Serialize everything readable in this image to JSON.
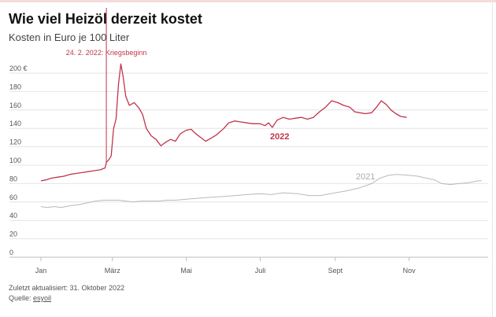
{
  "header": {
    "title": "Wie viel Heizöl derzeit kostet",
    "subtitle": "Kosten in Euro je 100 Liter"
  },
  "footer": {
    "updated": "Zuletzt aktualisiert: 31. Oktober 2022",
    "source_prefix": "Quelle: ",
    "source_link": "esyoil"
  },
  "chart_data": {
    "type": "line",
    "title": "Wie viel Heizöl derzeit kostet",
    "subtitle": "Kosten in Euro je 100 Liter",
    "ylim": [
      0,
      200
    ],
    "yticks": [
      0,
      20,
      40,
      60,
      80,
      100,
      120,
      140,
      160,
      180,
      200
    ],
    "ytick_labels": [
      "0",
      "20",
      "40",
      "60",
      "80",
      "100",
      "120",
      "140",
      "160",
      "180",
      "200 €"
    ],
    "xlim": [
      "01-01",
      "12-31"
    ],
    "xticks": [
      {
        "label": "Jan",
        "date": "01-01"
      },
      {
        "label": "März",
        "date": "03-01"
      },
      {
        "label": "Mai",
        "date": "05-01"
      },
      {
        "label": "Juli",
        "date": "07-01"
      },
      {
        "label": "Sept",
        "date": "09-01"
      },
      {
        "label": "Nov",
        "date": "11-01"
      }
    ],
    "grid": true,
    "annotations": [
      {
        "date": "02-24",
        "text": "24. 2. 2022: Kriegsbeginn"
      }
    ],
    "series": [
      {
        "name": "2021",
        "color": "#b9b9b9",
        "points": [
          [
            "01-01",
            55
          ],
          [
            "01-06",
            54
          ],
          [
            "01-12",
            55
          ],
          [
            "01-18",
            54
          ],
          [
            "01-25",
            56
          ],
          [
            "02-01",
            57
          ],
          [
            "02-08",
            59
          ],
          [
            "02-15",
            61
          ],
          [
            "02-22",
            62
          ],
          [
            "03-01",
            62
          ],
          [
            "03-06",
            62
          ],
          [
            "03-12",
            61
          ],
          [
            "03-18",
            60
          ],
          [
            "03-25",
            61
          ],
          [
            "04-01",
            61
          ],
          [
            "04-08",
            61
          ],
          [
            "04-15",
            62
          ],
          [
            "04-22",
            62
          ],
          [
            "05-01",
            63
          ],
          [
            "05-10",
            64
          ],
          [
            "05-20",
            65
          ],
          [
            "06-01",
            66
          ],
          [
            "06-10",
            67
          ],
          [
            "06-20",
            68
          ],
          [
            "07-01",
            69
          ],
          [
            "07-10",
            68
          ],
          [
            "07-20",
            70
          ],
          [
            "08-01",
            69
          ],
          [
            "08-10",
            67
          ],
          [
            "08-20",
            67
          ],
          [
            "09-01",
            70
          ],
          [
            "09-10",
            72
          ],
          [
            "09-20",
            75
          ],
          [
            "10-01",
            80
          ],
          [
            "10-08",
            86
          ],
          [
            "10-15",
            89
          ],
          [
            "10-22",
            90
          ],
          [
            "11-01",
            89
          ],
          [
            "11-08",
            88
          ],
          [
            "11-15",
            86
          ],
          [
            "11-22",
            84
          ],
          [
            "11-28",
            80
          ],
          [
            "12-05",
            79
          ],
          [
            "12-12",
            80
          ],
          [
            "12-20",
            81
          ],
          [
            "12-28",
            83
          ],
          [
            "12-31",
            83
          ]
        ]
      },
      {
        "name": "2022",
        "color": "#c0354a",
        "points": [
          [
            "01-01",
            83
          ],
          [
            "01-05",
            84
          ],
          [
            "01-10",
            86
          ],
          [
            "01-15",
            87
          ],
          [
            "01-20",
            88
          ],
          [
            "01-25",
            90
          ],
          [
            "01-30",
            91
          ],
          [
            "02-04",
            92
          ],
          [
            "02-09",
            93
          ],
          [
            "02-14",
            94
          ],
          [
            "02-19",
            95
          ],
          [
            "02-23",
            97
          ],
          [
            "02-24",
            103
          ],
          [
            "02-26",
            106
          ],
          [
            "02-28",
            110
          ],
          [
            "03-02",
            140
          ],
          [
            "03-04",
            150
          ],
          [
            "03-06",
            188
          ],
          [
            "03-08",
            210
          ],
          [
            "03-10",
            195
          ],
          [
            "03-12",
            175
          ],
          [
            "03-15",
            165
          ],
          [
            "03-19",
            168
          ],
          [
            "03-23",
            162
          ],
          [
            "03-26",
            155
          ],
          [
            "03-29",
            140
          ],
          [
            "04-02",
            132
          ],
          [
            "04-06",
            128
          ],
          [
            "04-10",
            121
          ],
          [
            "04-14",
            125
          ],
          [
            "04-18",
            128
          ],
          [
            "04-22",
            126
          ],
          [
            "04-26",
            134
          ],
          [
            "05-01",
            138
          ],
          [
            "05-05",
            139
          ],
          [
            "05-09",
            134
          ],
          [
            "05-13",
            130
          ],
          [
            "05-17",
            126
          ],
          [
            "05-21",
            129
          ],
          [
            "05-26",
            133
          ],
          [
            "06-01",
            140
          ],
          [
            "06-05",
            146
          ],
          [
            "06-10",
            148
          ],
          [
            "06-15",
            147
          ],
          [
            "06-20",
            146
          ],
          [
            "06-25",
            145
          ],
          [
            "07-01",
            145
          ],
          [
            "07-05",
            143
          ],
          [
            "07-08",
            146
          ],
          [
            "07-11",
            141
          ],
          [
            "07-15",
            149
          ],
          [
            "07-20",
            152
          ],
          [
            "07-25",
            150
          ],
          [
            "07-30",
            151
          ],
          [
            "08-04",
            152
          ],
          [
            "08-09",
            150
          ],
          [
            "08-14",
            152
          ],
          [
            "08-19",
            158
          ],
          [
            "08-24",
            163
          ],
          [
            "08-29",
            170
          ],
          [
            "09-03",
            168
          ],
          [
            "09-08",
            165
          ],
          [
            "09-13",
            163
          ],
          [
            "09-17",
            158
          ],
          [
            "09-21",
            157
          ],
          [
            "09-26",
            156
          ],
          [
            "10-01",
            157
          ],
          [
            "10-05",
            163
          ],
          [
            "10-09",
            170
          ],
          [
            "10-13",
            166
          ],
          [
            "10-17",
            160
          ],
          [
            "10-21",
            156
          ],
          [
            "10-25",
            153
          ],
          [
            "10-30",
            152
          ]
        ]
      }
    ]
  }
}
